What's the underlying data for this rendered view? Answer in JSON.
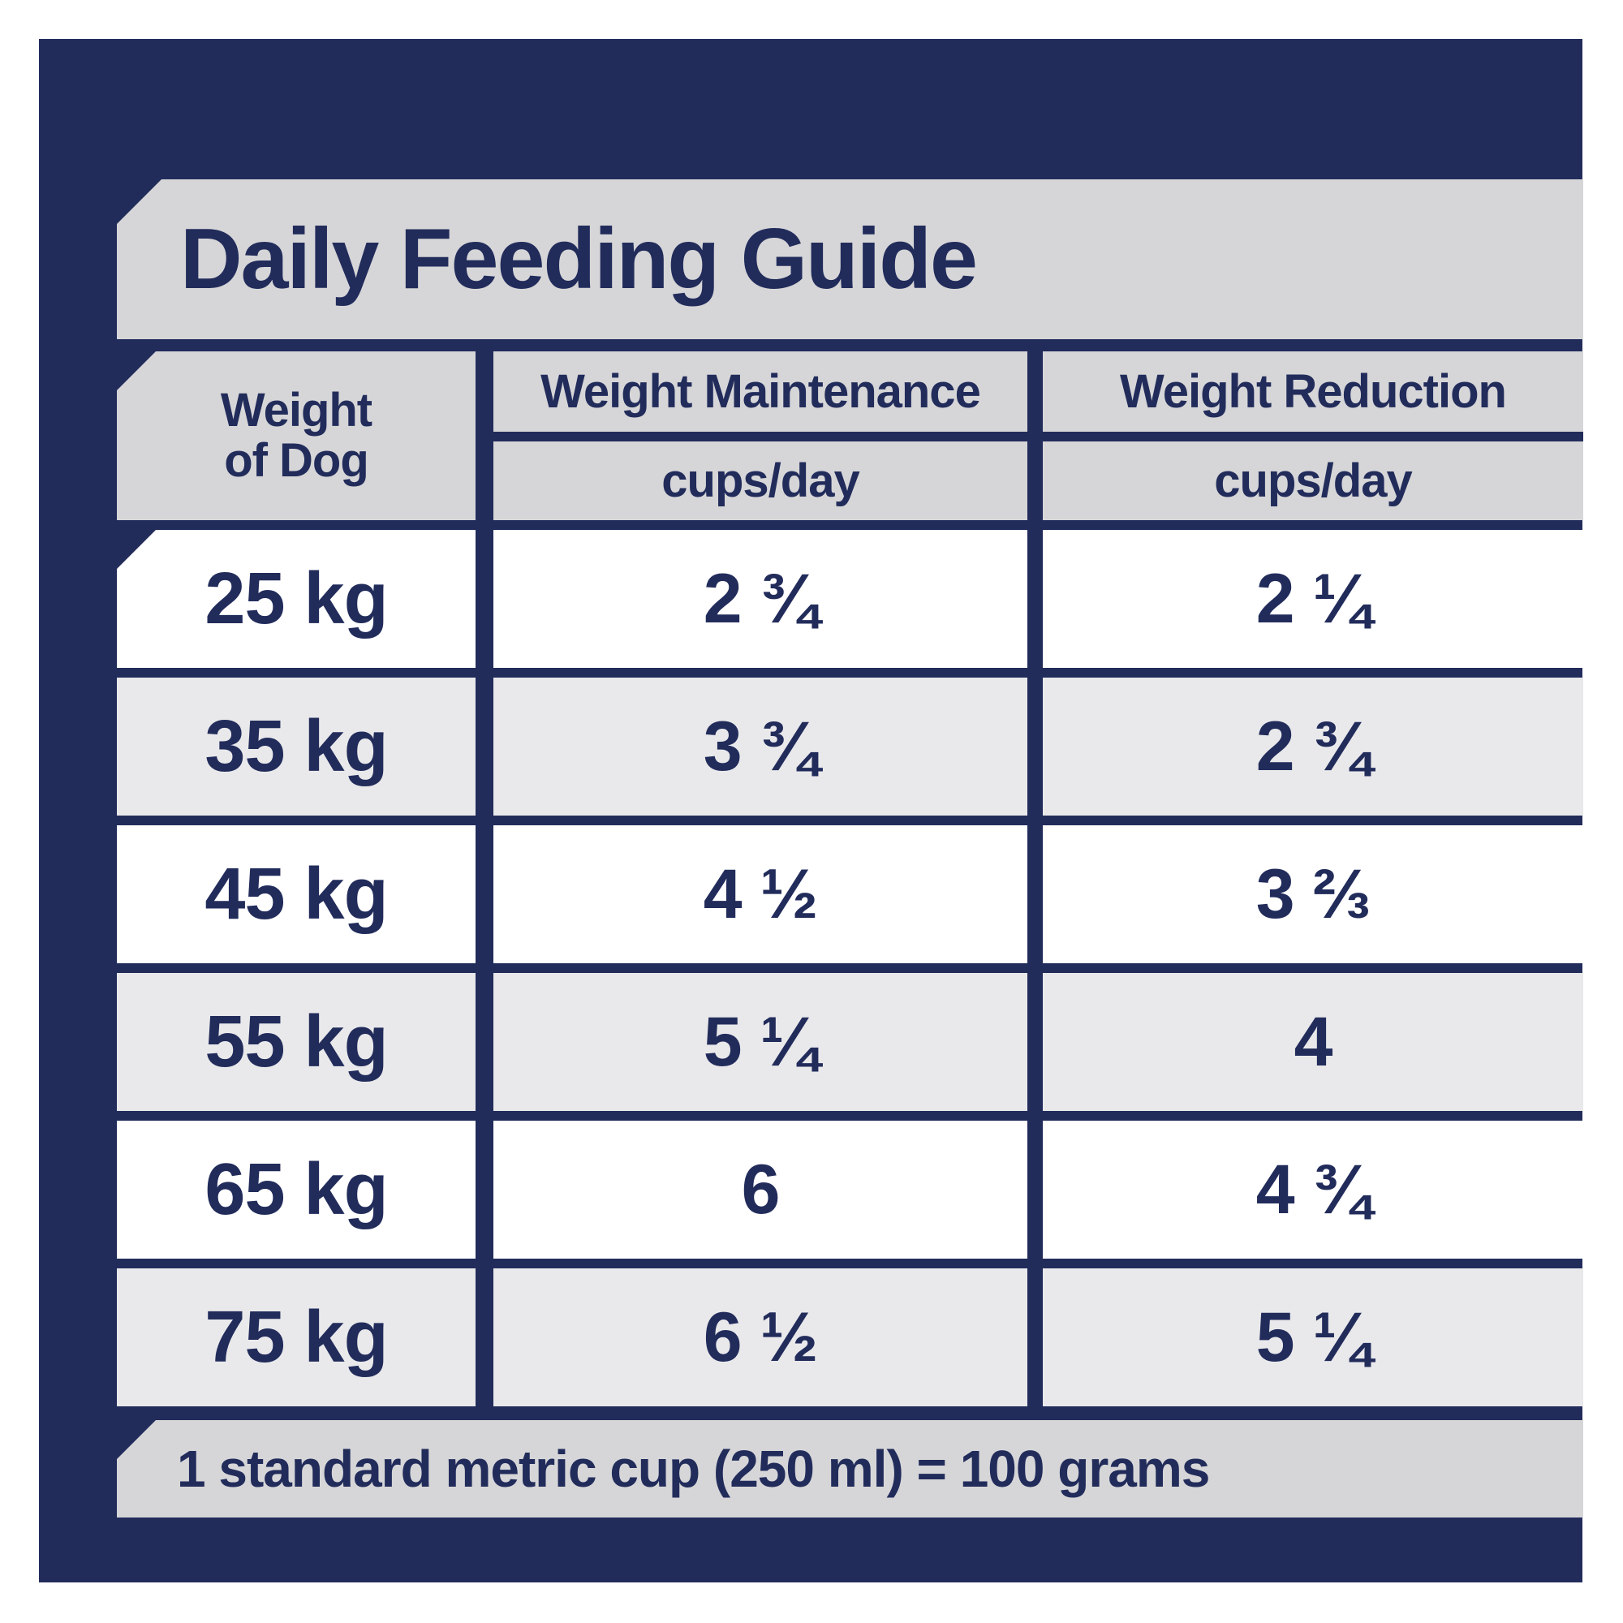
{
  "title": "Daily Feeding Guide",
  "table": {
    "col1_header": {
      "line1": "Weight",
      "line2": "of Dog"
    },
    "col2_header": {
      "label": "Weight Maintenance",
      "unit": "cups/day"
    },
    "col3_header": {
      "label": "Weight Reduction",
      "unit": "cups/day"
    },
    "rows": [
      {
        "weight": "25 kg",
        "maintenance": "2 ¾",
        "reduction": "2 ¼"
      },
      {
        "weight": "35 kg",
        "maintenance": "3 ¾",
        "reduction": "2 ¾"
      },
      {
        "weight": "45 kg",
        "maintenance": "4 ½",
        "reduction": "3 ⅔"
      },
      {
        "weight": "55 kg",
        "maintenance": "5 ¼",
        "reduction": "4"
      },
      {
        "weight": "65 kg",
        "maintenance": "6",
        "reduction": "4 ¾"
      },
      {
        "weight": "75 kg",
        "maintenance": "6 ½",
        "reduction": "5 ¼"
      }
    ]
  },
  "footer": {
    "note": "1 standard metric cup (250 ml) = 100 grams"
  },
  "colors": {
    "navy": "#222c5b",
    "banner_gray": "#d6d6d8",
    "row_gray": "#e9e9eb",
    "row_white": "#ffffff",
    "text_navy": "#222c5b"
  }
}
